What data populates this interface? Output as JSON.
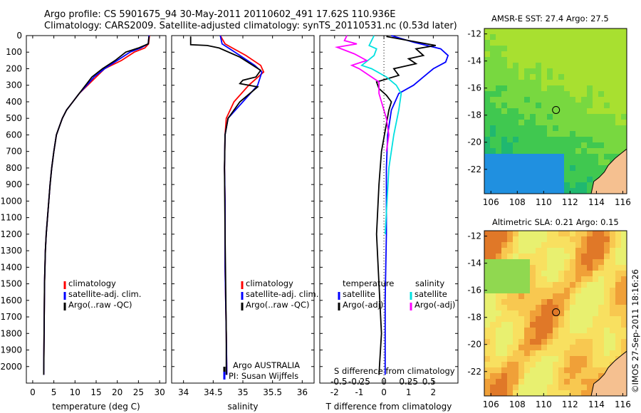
{
  "header": {
    "line1": "Argo profile: CS 5901675_94 30-May-2011 20110602_491 17.62S 110.936E",
    "line2": "Climatology: CARS2009. Satellite-adjusted climatology: synTS_20110531.nc (0.53d later)"
  },
  "panel1": {
    "legend": [
      "climatology",
      "satellite-adj. clim.",
      "Argo(..raw -QC)"
    ]
  },
  "panel2": {
    "legend": [
      "climatology",
      "satellite-adj. clim.",
      "Argo(..raw -QC)"
    ],
    "note1": "Argo AUSTRALIA",
    "note2": "PI: Susan Wijffels"
  },
  "panel3": {
    "legend_head_t": "temperature",
    "legend_head_s": "salinity",
    "legend_t": [
      "satellite",
      "Argo(-adj)"
    ],
    "legend_s": [
      "satellite",
      "Argo(-adj)"
    ],
    "top_xlabel": "S difference from climatology"
  },
  "map1": {
    "title": "AMSR-E SST: 27.4 Argo: 27.5"
  },
  "map2": {
    "title": "Altimetric SLA: 0.21 Argo: 0.15"
  },
  "credit": "©IMOS 27-Sep-2011 18:16:26",
  "colors": {
    "climatology": "#ff0000",
    "satellite": "#0000ff",
    "argo": "#000000",
    "sal_sat": "#00e0e0",
    "sal_argo": "#ff00ff"
  },
  "chart_data": [
    {
      "type": "line",
      "xlabel": "temperature (deg C)",
      "ylabel": "",
      "xlim": [
        -1.5,
        31.5
      ],
      "ylim": [
        2100,
        0
      ],
      "yticks": [
        0,
        100,
        200,
        300,
        400,
        500,
        600,
        700,
        800,
        900,
        1000,
        1100,
        1200,
        1300,
        1400,
        1500,
        1600,
        1700,
        1800,
        1900,
        2000
      ],
      "xticks": [
        0,
        5,
        10,
        15,
        20,
        25,
        30
      ],
      "series": [
        {
          "name": "climatology",
          "color": "#ff0000",
          "x": [
            27.6,
            27.4,
            26.5,
            24,
            21,
            17,
            15,
            13,
            11,
            9.5,
            8,
            7,
            6.3,
            5.6,
            5,
            4.5,
            4.1,
            3.8,
            3.5,
            3.2,
            3,
            2.8,
            2.6
          ],
          "y": [
            0,
            50,
            75,
            100,
            150,
            200,
            250,
            300,
            350,
            400,
            450,
            500,
            550,
            600,
            700,
            800,
            900,
            1000,
            1100,
            1200,
            1300,
            1500,
            2050
          ]
        },
        {
          "name": "satellite-adj. clim.",
          "color": "#0000ff",
          "x": [
            27.5,
            27.3,
            25.5,
            23,
            20,
            17,
            14.5,
            12.8,
            11,
            9.5,
            8,
            7,
            6.3,
            5.6,
            5,
            4.5,
            4.1,
            3.8,
            3.5,
            3.2,
            3,
            2.8,
            2.6
          ],
          "y": [
            0,
            50,
            75,
            100,
            150,
            200,
            250,
            300,
            350,
            400,
            450,
            500,
            550,
            600,
            700,
            800,
            900,
            1000,
            1100,
            1200,
            1300,
            1500,
            2050
          ]
        },
        {
          "name": "Argo(..raw -QC)",
          "color": "#000000",
          "x": [
            27.5,
            27.3,
            25,
            22,
            19.5,
            16.5,
            14,
            12.5,
            11,
            9.5,
            8,
            7,
            6.3,
            5.6,
            5,
            4.5,
            4.1,
            3.8,
            3.5,
            3.2,
            3,
            2.8,
            2.6
          ],
          "y": [
            5,
            50,
            75,
            100,
            150,
            200,
            250,
            300,
            350,
            400,
            450,
            500,
            550,
            600,
            700,
            800,
            900,
            1000,
            1100,
            1200,
            1300,
            1500,
            2050
          ]
        }
      ]
    },
    {
      "type": "line",
      "xlabel": "salinity",
      "xlim": [
        33.8,
        36.2
      ],
      "ylim": [
        2100,
        0
      ],
      "xticks": [
        34,
        34.5,
        35,
        35.5,
        36
      ],
      "xticklabels": [
        "34",
        "34.5",
        "35",
        "35.5",
        "36"
      ],
      "series": [
        {
          "name": "climatology",
          "color": "#ff0000",
          "x": [
            34.62,
            34.7,
            34.85,
            35.05,
            35.3,
            35.35,
            35.1,
            34.85,
            34.72,
            34.7,
            34.69,
            34.7,
            34.7,
            34.72,
            34.73
          ],
          "y": [
            0,
            50,
            80,
            120,
            180,
            220,
            300,
            400,
            500,
            600,
            800,
            1000,
            1400,
            1800,
            2050
          ]
        },
        {
          "name": "satellite-adj. clim.",
          "color": "#0000ff",
          "x": [
            34.62,
            34.65,
            34.78,
            34.95,
            35.2,
            35.32,
            35.25,
            35.0,
            34.75,
            34.7,
            34.69,
            34.7,
            34.7,
            34.72,
            34.73
          ],
          "y": [
            0,
            50,
            80,
            120,
            180,
            220,
            300,
            400,
            500,
            600,
            800,
            1000,
            1400,
            1800,
            2050
          ]
        },
        {
          "name": "Argo(..raw -QC)",
          "color": "#000000",
          "x": [
            34.12,
            34.12,
            34.4,
            34.6,
            34.95,
            35.3,
            35.22,
            35.0,
            34.95,
            35.25,
            35.15,
            34.95,
            34.75,
            34.7,
            34.69,
            34.7,
            34.72,
            34.72
          ],
          "y": [
            5,
            55,
            60,
            75,
            130,
            210,
            250,
            270,
            290,
            310,
            340,
            400,
            500,
            600,
            800,
            1200,
            1800,
            2050
          ]
        }
      ]
    },
    {
      "type": "line",
      "xlabel": "T difference from climatology",
      "top_xlabel": "S difference from climatology",
      "xlim": [
        -2.6,
        3.0
      ],
      "ylim": [
        2100,
        0
      ],
      "xticks": [
        -2,
        -1,
        0,
        1,
        2
      ],
      "top_ticklabels": [
        "-0.5",
        "-0.25",
        "0",
        "0.25",
        "0.5"
      ],
      "top_tick_values_T": [
        -2,
        -1,
        0,
        1,
        2
      ],
      "series": [
        {
          "name": "satellite",
          "variable": "temperature",
          "color": "#0000ff",
          "x": [
            0.3,
            1.2,
            2.3,
            2.6,
            2.5,
            2.0,
            1.6,
            1.2,
            0.6,
            0.3,
            0.15,
            0.1,
            0.1,
            0.05,
            0.05
          ],
          "y": [
            0,
            40,
            80,
            120,
            160,
            200,
            250,
            300,
            350,
            450,
            600,
            800,
            1200,
            1600,
            2050
          ]
        },
        {
          "name": "Argo(-adj)",
          "variable": "temperature",
          "color": "#000000",
          "x": [
            0.1,
            2.1,
            1.3,
            1.6,
            1.0,
            1.3,
            0.4,
            0.6,
            -0.3,
            -0.2,
            0.1,
            0.3,
            0.2,
            -0.1,
            -0.2,
            -0.3,
            -0.2,
            -0.1,
            -0.2
          ],
          "y": [
            5,
            60,
            80,
            120,
            140,
            170,
            200,
            240,
            280,
            320,
            360,
            400,
            450,
            700,
            900,
            1200,
            1500,
            1800,
            2050
          ]
        },
        {
          "name": "satellite",
          "variable": "salinity",
          "color": "#00e0e0",
          "x": [
            -0.4,
            -0.6,
            -0.3,
            -0.4,
            -0.9,
            -0.5,
            0.1,
            0.5,
            0.7,
            0.6,
            0.4,
            0.2,
            0.05
          ],
          "y": [
            0,
            60,
            80,
            120,
            180,
            200,
            250,
            300,
            350,
            450,
            600,
            800,
            1200
          ]
        },
        {
          "name": "Argo(-adj)",
          "variable": "salinity",
          "color": "#ff00ff",
          "x": [
            -1.5,
            -1.6,
            -1.1,
            -1.9,
            -1.2,
            -0.7,
            -1.3,
            -1.0,
            -0.2,
            -0.2,
            0.1,
            0.2,
            0.1
          ],
          "y": [
            0,
            30,
            50,
            70,
            110,
            150,
            180,
            200,
            280,
            350,
            500,
            600,
            700
          ]
        }
      ]
    },
    {
      "type": "heatmap",
      "title": "AMSR-E SST: 27.4 Argo: 27.5",
      "xlim": [
        105.5,
        116.3
      ],
      "ylim": [
        -23.8,
        -11.6
      ],
      "xticks": [
        106,
        108,
        110,
        112,
        114,
        116
      ],
      "yticks": [
        -22,
        -20,
        -18,
        -16,
        -14,
        -12
      ],
      "point": {
        "lon": 110.936,
        "lat": -17.62
      }
    },
    {
      "type": "heatmap",
      "title": "Altimetric SLA: 0.21 Argo: 0.15",
      "xlim": [
        105.5,
        116.3
      ],
      "ylim": [
        -23.8,
        -11.6
      ],
      "xticks": [
        106,
        108,
        110,
        112,
        114,
        116
      ],
      "yticks": [
        -22,
        -20,
        -18,
        -16,
        -14,
        -12
      ],
      "point": {
        "lon": 110.936,
        "lat": -17.62
      }
    }
  ]
}
